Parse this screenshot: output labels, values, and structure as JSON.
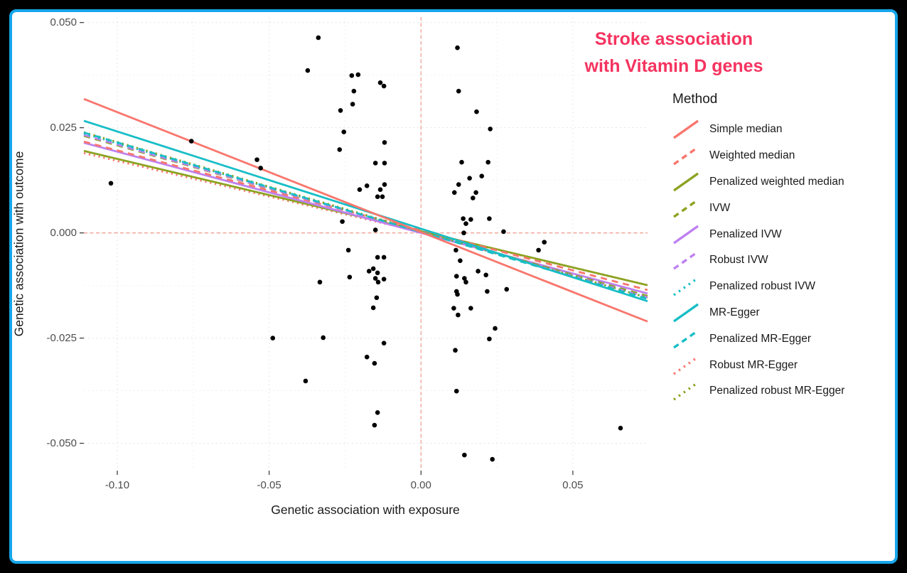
{
  "title": {
    "line1": "Stroke association",
    "line2": "with Vitamin D genes",
    "color": "#f5335f"
  },
  "frame": {
    "outer_background": "#000000",
    "border_color": "#16a6e9",
    "panel_background": "#ffffff"
  },
  "axes": {
    "x": {
      "label": "Genetic association with exposure",
      "tick_labels": [
        "-0.10",
        "-0.05",
        "0.00",
        "0.05"
      ],
      "tick_values": [
        -0.1,
        -0.05,
        0.0,
        0.05
      ]
    },
    "y": {
      "label": "Genetic association with outcome",
      "tick_labels": [
        "0.050",
        "0.025",
        "0.000",
        "-0.025",
        "-0.050"
      ],
      "tick_values": [
        0.05,
        0.025,
        0.0,
        -0.025,
        -0.05
      ]
    }
  },
  "legend": {
    "title": "Method",
    "items": [
      {
        "id": "simple-median",
        "label": "Simple median",
        "color": "#f8766d",
        "dash": "solid"
      },
      {
        "id": "weighted-median",
        "label": "Weighted median",
        "color": "#f8766d",
        "dash": "dashed"
      },
      {
        "id": "penalized-weighted-median",
        "label": "Penalized weighted median",
        "color": "#8ca321",
        "dash": "solid"
      },
      {
        "id": "ivw",
        "label": "IVW",
        "color": "#8ca321",
        "dash": "dashed"
      },
      {
        "id": "penalized-ivw",
        "label": "Penalized IVW",
        "color": "#be80f0",
        "dash": "solid"
      },
      {
        "id": "robust-ivw",
        "label": "Robust IVW",
        "color": "#be80f0",
        "dash": "dashed"
      },
      {
        "id": "penalized-robust-ivw",
        "label": "Penalized robust IVW",
        "color": "#17bec6",
        "dash": "dotted"
      },
      {
        "id": "mr-egger",
        "label": "MR-Egger",
        "color": "#17bec6",
        "dash": "solid"
      },
      {
        "id": "penalized-mr-egger",
        "label": "Penalized MR-Egger",
        "color": "#17bec6",
        "dash": "dashed"
      },
      {
        "id": "robust-mr-egger",
        "label": "Robust MR-Egger",
        "color": "#f8766d",
        "dash": "dotted"
      },
      {
        "id": "penalized-robust-mr-egger",
        "label": "Penalized robust MR-Egger",
        "color": "#8ca321",
        "dash": "dotted"
      }
    ]
  },
  "chart_data": {
    "type": "scatter",
    "title": "Stroke association with Vitamin D genes",
    "xlabel": "Genetic association with exposure",
    "ylabel": "Genetic association with outcome",
    "xlim": [
      -0.111,
      0.0746
    ],
    "ylim": [
      -0.0565,
      0.0513
    ],
    "grid": {
      "x_major": [
        -0.1,
        -0.05,
        0.0,
        0.05
      ],
      "x_minor": [
        -0.075,
        -0.025,
        0.025
      ],
      "y_major": [
        0.05,
        0.025,
        0.0,
        -0.025,
        -0.05
      ],
      "y_minor": [
        0.0375,
        0.0125,
        -0.0125,
        -0.0375
      ],
      "major_color": "#e2e2e2",
      "minor_color": "#efefef"
    },
    "reference_lines": {
      "x": 0,
      "y": 0,
      "color": "#ef9a8c"
    },
    "point_color": "#000000",
    "points": [
      [
        -0.0338,
        0.0464
      ],
      [
        0.012,
        0.044
      ],
      [
        -0.0373,
        0.0386
      ],
      [
        -0.0228,
        0.0374
      ],
      [
        -0.0207,
        0.0376
      ],
      [
        -0.0221,
        0.0337
      ],
      [
        -0.0134,
        0.0357
      ],
      [
        -0.0122,
        0.0349
      ],
      [
        -0.0225,
        0.0306
      ],
      [
        -0.0265,
        0.0291
      ],
      [
        0.0124,
        0.0337
      ],
      [
        0.0183,
        0.0288
      ],
      [
        -0.0254,
        0.024
      ],
      [
        0.0228,
        0.0247
      ],
      [
        -0.012,
        0.0215
      ],
      [
        -0.0268,
        0.0198
      ],
      [
        -0.015,
        0.0166
      ],
      [
        -0.012,
        0.0166
      ],
      [
        0.0134,
        0.0168
      ],
      [
        0.0221,
        0.0168
      ],
      [
        0.016,
        0.013
      ],
      [
        0.02,
        0.0135
      ],
      [
        -0.0202,
        0.0103
      ],
      [
        -0.0178,
        0.0112
      ],
      [
        -0.0134,
        0.0103
      ],
      [
        -0.012,
        0.0115
      ],
      [
        0.0124,
        0.0115
      ],
      [
        0.011,
        0.0096
      ],
      [
        -0.0143,
        0.0086
      ],
      [
        -0.0127,
        0.0086
      ],
      [
        0.0181,
        0.0096
      ],
      [
        0.0171,
        0.0083
      ],
      [
        -0.0259,
        0.0027
      ],
      [
        -0.015,
        0.0007
      ],
      [
        0.0139,
        0.0034
      ],
      [
        0.0164,
        0.0032
      ],
      [
        0.0148,
        0.0022
      ],
      [
        0.0141,
        0.0
      ],
      [
        0.0225,
        0.0034
      ],
      [
        0.0272,
        0.0003
      ],
      [
        0.0406,
        -0.0022
      ],
      [
        0.0387,
        -0.0041
      ],
      [
        -0.0239,
        -0.0041
      ],
      [
        -0.0143,
        -0.0058
      ],
      [
        -0.0122,
        -0.0058
      ],
      [
        -0.0171,
        -0.0091
      ],
      [
        -0.0157,
        -0.0085
      ],
      [
        -0.0235,
        -0.0105
      ],
      [
        -0.0143,
        -0.0095
      ],
      [
        -0.015,
        -0.0108
      ],
      [
        -0.0141,
        -0.0117
      ],
      [
        -0.0122,
        -0.011
      ],
      [
        -0.0333,
        -0.0117
      ],
      [
        -0.0146,
        -0.0154
      ],
      [
        -0.0157,
        -0.0178
      ],
      [
        -0.0488,
        -0.025
      ],
      [
        -0.0322,
        -0.0249
      ],
      [
        -0.0122,
        -0.0262
      ],
      [
        -0.0178,
        -0.0295
      ],
      [
        -0.0153,
        -0.031
      ],
      [
        -0.038,
        -0.0352
      ],
      [
        -0.0143,
        -0.0427
      ],
      [
        -0.0153,
        -0.0457
      ],
      [
        0.0115,
        -0.0041
      ],
      [
        0.0129,
        -0.0066
      ],
      [
        0.0117,
        -0.0103
      ],
      [
        0.0143,
        -0.0108
      ],
      [
        0.0148,
        -0.0117
      ],
      [
        0.0188,
        -0.0091
      ],
      [
        0.0214,
        -0.01
      ],
      [
        0.0117,
        -0.0139
      ],
      [
        0.012,
        -0.0146
      ],
      [
        0.0218,
        -0.0139
      ],
      [
        0.0282,
        -0.0134
      ],
      [
        0.0108,
        -0.0179
      ],
      [
        0.0122,
        -0.0195
      ],
      [
        0.0164,
        -0.0179
      ],
      [
        0.0244,
        -0.0227
      ],
      [
        0.0225,
        -0.0252
      ],
      [
        0.0113,
        -0.0279
      ],
      [
        0.0117,
        -0.0376
      ],
      [
        0.0143,
        -0.0528
      ],
      [
        0.0235,
        -0.0538
      ],
      [
        -0.1021,
        0.0118
      ],
      [
        -0.0756,
        0.0218
      ],
      [
        -0.054,
        0.0174
      ],
      [
        -0.0528,
        0.0154
      ],
      [
        0.0657,
        -0.0464
      ]
    ],
    "series": [
      {
        "id": "simple-median",
        "name": "Simple median",
        "slope": -0.285,
        "intercept": 0.0002,
        "color": "#f8766d",
        "dash": "solid"
      },
      {
        "id": "weighted-median",
        "name": "Weighted median",
        "slope": -0.19,
        "intercept": 0.0006,
        "color": "#f8766d",
        "dash": "dashed"
      },
      {
        "id": "penalized-weighted-median",
        "name": "Penalized weighted median",
        "slope": -0.172,
        "intercept": 0.0004,
        "color": "#8ca321",
        "dash": "solid"
      },
      {
        "id": "ivw",
        "name": "IVW",
        "slope": -0.205,
        "intercept": 0.0003,
        "color": "#8ca321",
        "dash": "dashed"
      },
      {
        "id": "penalized-ivw",
        "name": "Penalized IVW",
        "slope": -0.193,
        "intercept": 0.0,
        "color": "#be80f0",
        "dash": "solid"
      },
      {
        "id": "robust-ivw",
        "name": "Robust IVW",
        "slope": -0.208,
        "intercept": 0.0002,
        "color": "#be80f0",
        "dash": "dashed"
      },
      {
        "id": "penalized-robust-ivw",
        "name": "Penalized robust IVW",
        "slope": -0.21,
        "intercept": 0.0003,
        "color": "#17bec6",
        "dash": "dotted"
      },
      {
        "id": "mr-egger",
        "name": "MR-Egger",
        "slope": -0.231,
        "intercept": 0.001,
        "color": "#17bec6",
        "dash": "solid"
      },
      {
        "id": "penalized-mr-egger",
        "name": "Penalized MR-Egger",
        "slope": -0.213,
        "intercept": 0.0002,
        "color": "#17bec6",
        "dash": "dashed"
      },
      {
        "id": "robust-mr-egger",
        "name": "Robust MR-Egger",
        "slope": -0.169,
        "intercept": 0.0002,
        "color": "#f8766d",
        "dash": "dotted"
      },
      {
        "id": "penalized-robust-mr-egger",
        "name": "Penalized robust MR-Egger",
        "slope": -0.212,
        "intercept": 0.0004,
        "color": "#8ca321",
        "dash": "dotted"
      }
    ],
    "draw_order": [
      "robust-mr-egger",
      "penalized-weighted-median",
      "penalized-ivw",
      "weighted-median",
      "ivw",
      "robust-ivw",
      "penalized-robust-ivw",
      "penalized-robust-mr-egger",
      "penalized-mr-egger",
      "mr-egger",
      "simple-median"
    ],
    "legend_position": "right"
  }
}
